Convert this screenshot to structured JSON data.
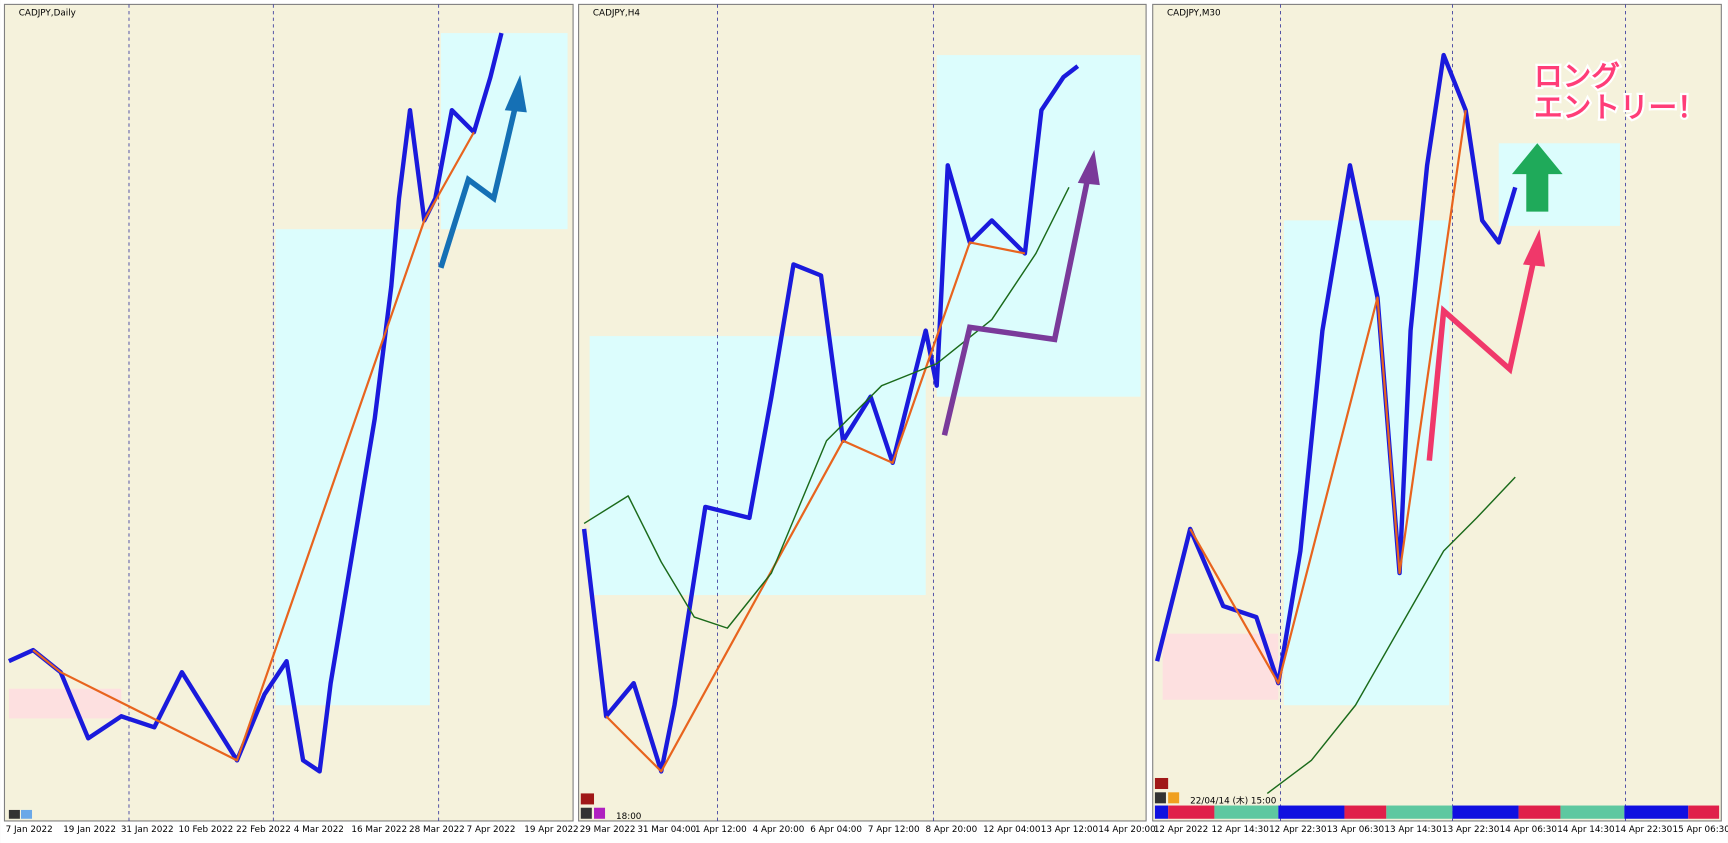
{
  "panels": [
    {
      "title": "CADJPY,Daily",
      "x_labels": [
        "7 Jan 2022",
        "19 Jan 2022",
        "31 Jan 2022",
        "10 Feb 2022",
        "22 Feb 2022",
        "4 Mar 2022",
        "16 Mar 2022",
        "28 Mar 2022",
        "7 Apr 2022",
        "19 Apr 2022"
      ]
    },
    {
      "title": "CADJPY,H4",
      "x_labels": [
        "29 Mar 2022",
        "31 Mar 04:00",
        "1 Apr 12:00",
        "4 Apr 20:00",
        "6 Apr 04:00",
        "7 Apr 12:00",
        "8 Apr 20:00",
        "12 Apr 04:00",
        "13 Apr 12:00",
        "14 Apr 20:00"
      ],
      "time_label": "18:00"
    },
    {
      "title": "CADJPY,M30",
      "x_labels": [
        "12 Apr 2022",
        "12 Apr 14:30",
        "12 Apr 22:30",
        "13 Apr 06:30",
        "13 Apr 14:30",
        "13 Apr 22:30",
        "14 Apr 06:30",
        "14 Apr 14:30",
        "14 Apr 22:30",
        "15 Apr 06:30"
      ],
      "time_label": "22/04/14 (木) 15:00",
      "annotation": [
        "ロング",
        "エントリー！"
      ]
    }
  ]
}
